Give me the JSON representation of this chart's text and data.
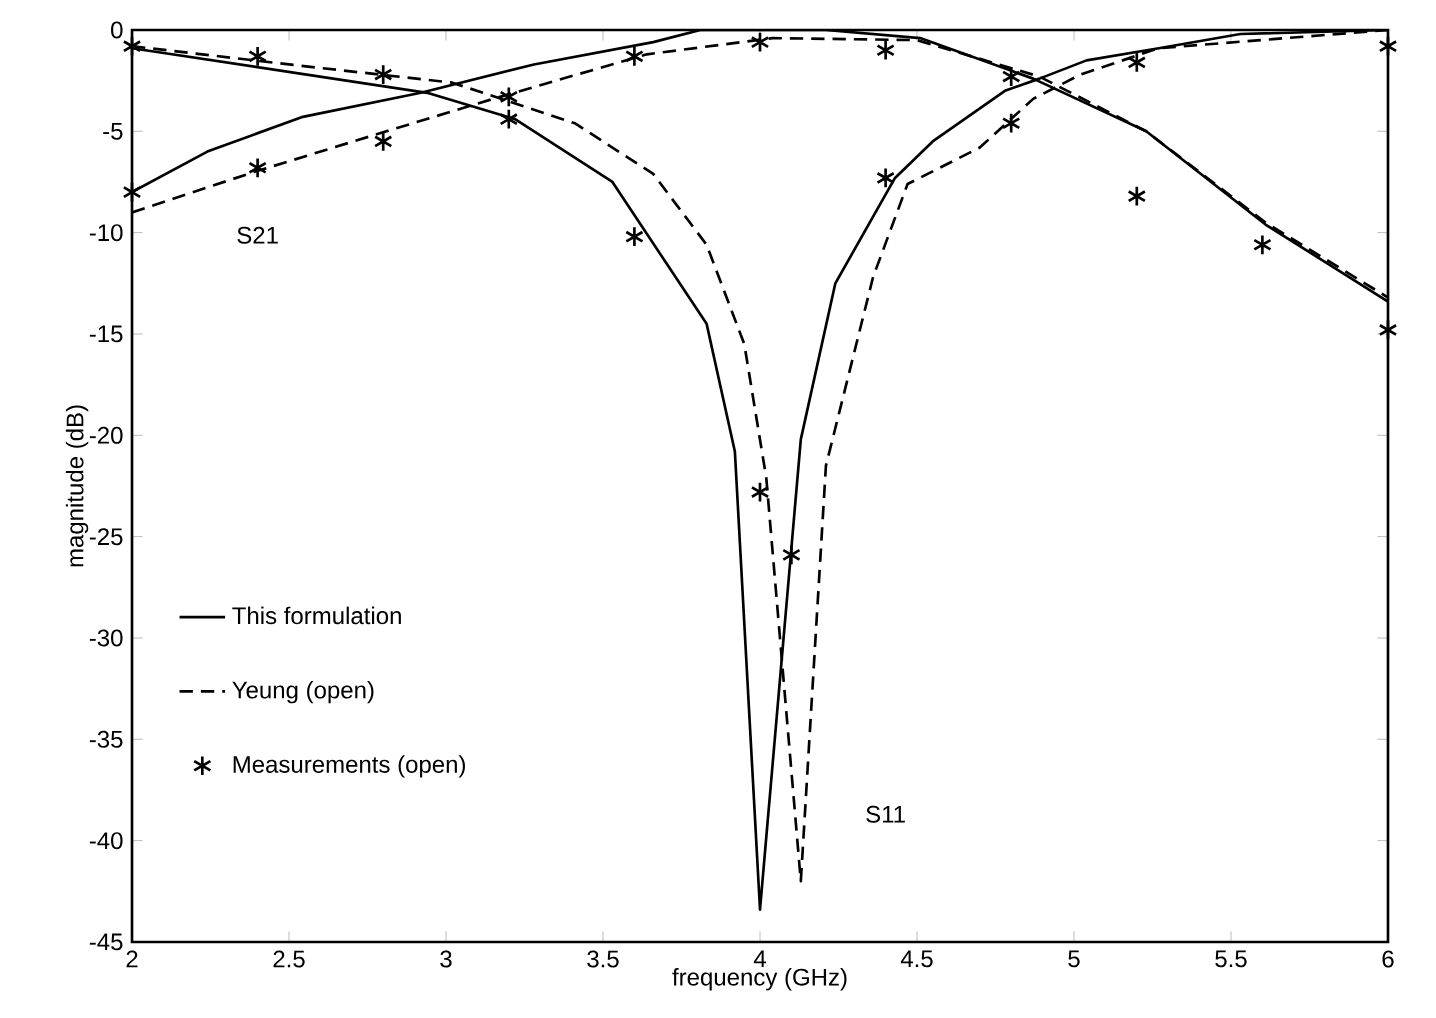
{
  "chart_data": {
    "type": "line",
    "xlabel": "frequency (GHz)",
    "ylabel": "magnitude (dB)",
    "xlim": [
      2,
      6
    ],
    "ylim": [
      -45,
      0
    ],
    "xticks": [
      2,
      2.5,
      3,
      3.5,
      4,
      4.5,
      5,
      5.5,
      6
    ],
    "yticks": [
      -45,
      -40,
      -35,
      -30,
      -25,
      -20,
      -15,
      -10,
      -5,
      0
    ],
    "grid": false,
    "legend": "left",
    "annotations": [
      "S21",
      "S11"
    ],
    "series": [
      {
        "name": "This formulation",
        "type": "line",
        "line_style": "solid",
        "marker": "none",
        "color": "#000000",
        "x": [
          2,
          2.24,
          2.54,
          2.92,
          3.28,
          3.66,
          3.81,
          4.21,
          4.51,
          4.87,
          5.23,
          5.61,
          6
        ],
        "values": [
          -8.0,
          -6.0,
          -4.3,
          -3.1,
          -1.7,
          -0.6,
          0,
          0,
          -0.4,
          -2.4,
          -5.0,
          -9.6,
          -13.4
        ]
      },
      {
        "type": "line",
        "line_style": "solid",
        "marker": "none",
        "color": "#000000",
        "x": [
          2,
          2.94,
          3.22,
          3.53,
          3.83,
          3.92,
          4.0,
          4.13,
          4.24,
          4.43,
          4.55,
          4.78,
          4.89,
          5.04,
          5.27,
          5.53,
          6
        ],
        "values": [
          -0.9,
          -3.1,
          -4.4,
          -7.5,
          -14.5,
          -20.8,
          -43.4,
          -20.2,
          -12.5,
          -7.3,
          -5.5,
          -3.0,
          -2.4,
          -1.5,
          -0.9,
          -0.2,
          0
        ]
      },
      {
        "name": "Yeung (open)",
        "type": "line",
        "line_style": "dashed",
        "marker": "none",
        "color": "#000000",
        "x": [
          2,
          2.5,
          3.02,
          3.41,
          3.66,
          3.83,
          3.95,
          4.02,
          4.13,
          4.21,
          4.36,
          4.47,
          4.7,
          4.87,
          5.02,
          5.27,
          6
        ],
        "values": [
          -0.8,
          -1.7,
          -2.6,
          -4.6,
          -7.1,
          -10.6,
          -15.5,
          -22.1,
          -42.0,
          -21.5,
          -12.2,
          -7.6,
          -5.8,
          -3.4,
          -2.2,
          -0.9,
          0
        ]
      },
      {
        "type": "line",
        "line_style": "dashed",
        "marker": "none",
        "color": "#000000",
        "x": [
          2,
          2.39,
          2.81,
          3.15,
          3.64,
          4.04,
          4.5,
          4.89,
          5.23,
          5.61,
          6
        ],
        "values": [
          -9.0,
          -7.0,
          -5.0,
          -3.4,
          -1.2,
          -0.4,
          -0.5,
          -2.3,
          -5.0,
          -9.5,
          -13.2
        ]
      },
      {
        "name": "Measurements (open)",
        "type": "scatter",
        "marker": "cross",
        "color": "#000000",
        "x": [
          2,
          2,
          2.4,
          2.4,
          2.8,
          2.8,
          3.2,
          3.2,
          3.6,
          3.6,
          4.0,
          4.0,
          4.1,
          4.4,
          4.4,
          4.8,
          4.8,
          5.2,
          5.2,
          5.6,
          6,
          6
        ],
        "values": [
          -8.0,
          -0.8,
          -6.8,
          -1.3,
          -5.5,
          -2.2,
          -3.3,
          -4.4,
          -1.3,
          -10.2,
          -0.6,
          -22.8,
          -25.9,
          -1.0,
          -7.3,
          -2.3,
          -4.6,
          -8.2,
          -1.6,
          -10.6,
          -14.8,
          -0.8
        ]
      }
    ]
  }
}
